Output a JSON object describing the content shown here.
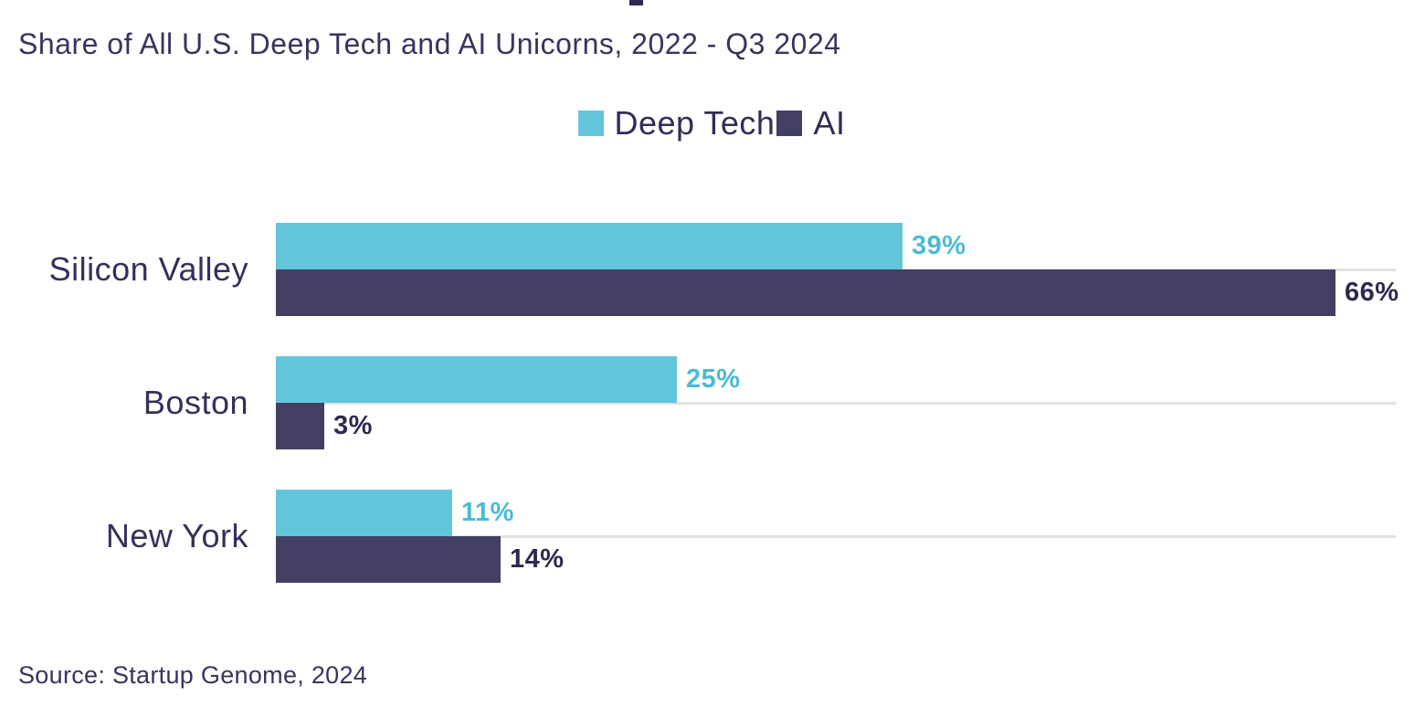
{
  "header": {
    "subtitle": "Share of All U.S. Deep Tech and AI Unicorns, 2022 - Q3 2024"
  },
  "footer": {
    "source": "Source: Startup Genome, 2024"
  },
  "colors": {
    "deep_tech": "#63c5da",
    "deep_tech_label": "#4bbad6",
    "ai": "#423f63",
    "ai_label": "#2d2850",
    "text_dark": "#35305a",
    "track": "#e2e2e2",
    "title_fragment": "#2f2a52",
    "background": "#ffffff"
  },
  "chart_data": {
    "type": "bar",
    "orientation": "horizontal",
    "title": "Share of All U.S. Deep Tech and AI Unicorns, 2022 - Q3 2024",
    "categories": [
      "Silicon Valley",
      "Boston",
      "New York"
    ],
    "series": [
      {
        "name": "Deep Tech",
        "color": "#63c5da",
        "label_color": "#4bbad6",
        "values": [
          39,
          25,
          11
        ]
      },
      {
        "name": "AI",
        "color": "#423f63",
        "label_color": "#2d2850",
        "values": [
          66,
          3,
          14
        ]
      }
    ],
    "unit": "%",
    "value_labels": [
      "39%",
      "66%",
      "25%",
      "3%",
      "11%",
      "14%"
    ],
    "xlim": [
      0,
      69.7
    ],
    "legend_position": "top-center",
    "gridlines": "horizontal-category-tracks",
    "source": "Source: Startup Genome, 2024"
  }
}
